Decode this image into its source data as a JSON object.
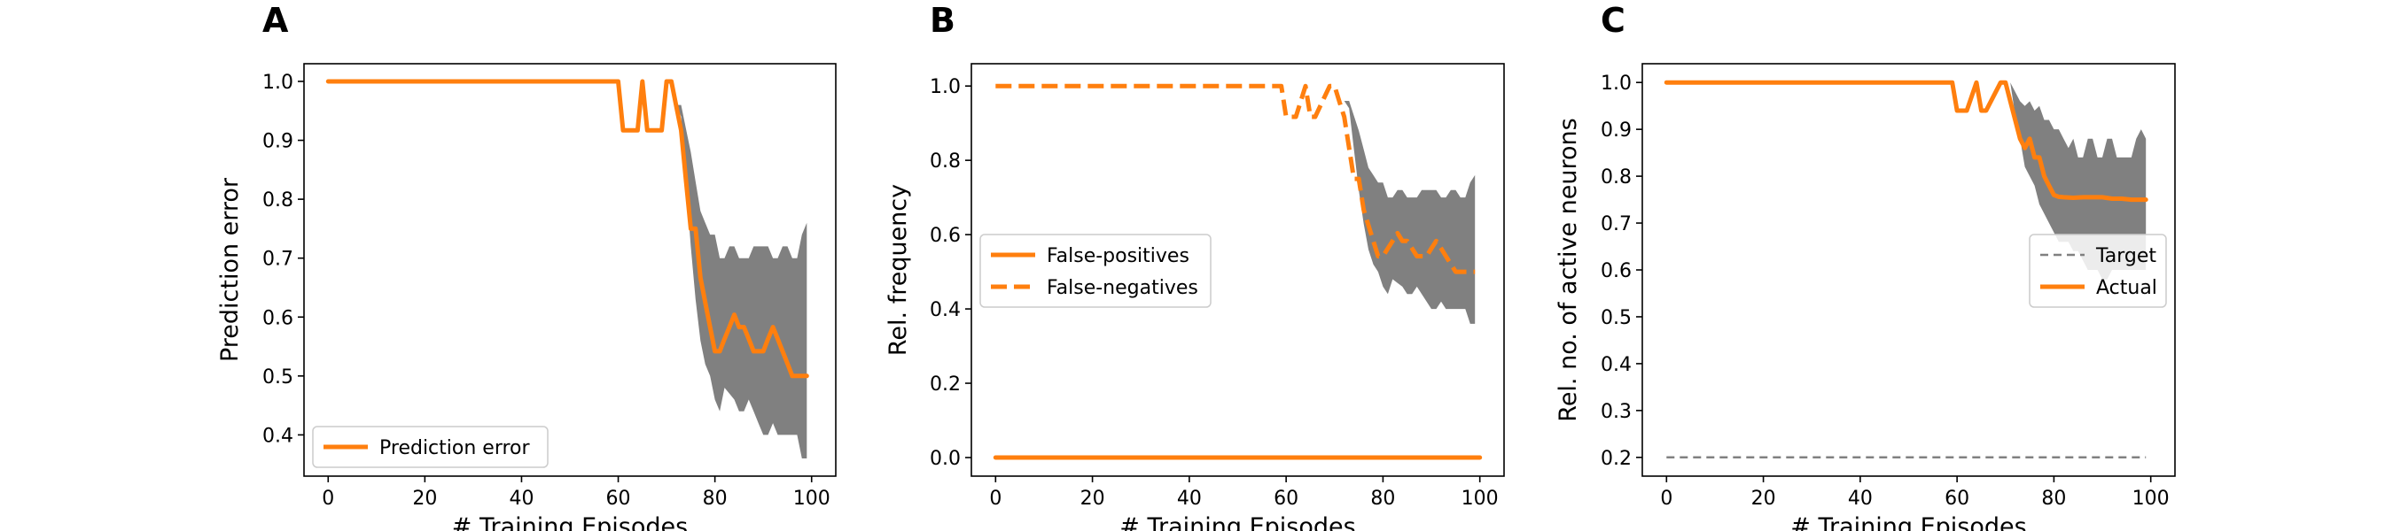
{
  "chart_data": [
    {
      "panel": "A",
      "type": "line",
      "xlabel": "# Training Episodes",
      "ylabel": "Prediction error",
      "xlim": [
        -5,
        105
      ],
      "ylim": [
        0.33,
        1.03
      ],
      "xticks": [
        0,
        20,
        40,
        60,
        80,
        100
      ],
      "yticks": [
        0.4,
        0.5,
        0.6,
        0.7,
        0.8,
        0.9,
        1.0
      ],
      "ytick_labels": [
        "0.4",
        "0.5",
        "0.6",
        "0.7",
        "0.8",
        "0.9",
        "1.0"
      ],
      "grid": false,
      "legend": {
        "placement": "lower-left",
        "entries": [
          {
            "label": "Prediction error",
            "style": "solid",
            "color": "#ff7f0e"
          }
        ]
      },
      "series": [
        {
          "name": "Prediction error",
          "color": "#ff7f0e",
          "style": "solid",
          "x": [
            0,
            60,
            61,
            64,
            65,
            66,
            69,
            70,
            71,
            72,
            73,
            74,
            75,
            76,
            77,
            78,
            79,
            80,
            81,
            82,
            83,
            84,
            85,
            86,
            87,
            88,
            89,
            90,
            91,
            92,
            93,
            94,
            95,
            96,
            97,
            98,
            99
          ],
          "y": [
            1.0,
            1.0,
            0.917,
            0.917,
            1.0,
            0.917,
            0.917,
            1.0,
            1.0,
            0.958,
            0.917,
            0.833,
            0.75,
            0.75,
            0.667,
            0.625,
            0.583,
            0.542,
            0.542,
            0.563,
            0.583,
            0.604,
            0.583,
            0.583,
            0.563,
            0.542,
            0.542,
            0.542,
            0.563,
            0.583,
            0.563,
            0.542,
            0.521,
            0.5,
            0.5,
            0.5,
            0.5
          ]
        }
      ],
      "band": {
        "color": "#808080",
        "x": [
          72,
          73,
          74,
          75,
          76,
          77,
          78,
          79,
          80,
          81,
          82,
          83,
          84,
          85,
          86,
          87,
          88,
          89,
          90,
          91,
          92,
          93,
          94,
          95,
          96,
          97,
          98,
          99
        ],
        "upper": [
          0.96,
          0.96,
          0.92,
          0.88,
          0.83,
          0.78,
          0.76,
          0.74,
          0.74,
          0.7,
          0.7,
          0.72,
          0.72,
          0.7,
          0.7,
          0.7,
          0.72,
          0.72,
          0.72,
          0.72,
          0.7,
          0.7,
          0.72,
          0.72,
          0.7,
          0.7,
          0.74,
          0.76
        ],
        "lower": [
          0.96,
          0.94,
          0.83,
          0.72,
          0.63,
          0.56,
          0.52,
          0.5,
          0.46,
          0.44,
          0.48,
          0.47,
          0.46,
          0.44,
          0.44,
          0.46,
          0.44,
          0.42,
          0.4,
          0.4,
          0.42,
          0.4,
          0.4,
          0.4,
          0.4,
          0.4,
          0.36,
          0.36
        ]
      }
    },
    {
      "panel": "B",
      "type": "line",
      "xlabel": "# Training Episodes",
      "ylabel": "Rel. frequency",
      "xlim": [
        -5,
        105
      ],
      "ylim": [
        -0.05,
        1.06
      ],
      "xticks": [
        0,
        20,
        40,
        60,
        80,
        100
      ],
      "yticks": [
        0.0,
        0.2,
        0.4,
        0.6,
        0.8,
        1.0
      ],
      "ytick_labels": [
        "0.0",
        "0.2",
        "0.4",
        "0.6",
        "0.8",
        "1.0"
      ],
      "grid": false,
      "legend": {
        "placement": "center-left",
        "entries": [
          {
            "label": "False-positives",
            "style": "solid",
            "color": "#ff7f0e"
          },
          {
            "label": "False-negatives",
            "style": "dashed",
            "color": "#ff7f0e"
          }
        ]
      },
      "series": [
        {
          "name": "False-positives",
          "color": "#ff7f0e",
          "style": "solid",
          "x": [
            0,
            100
          ],
          "y": [
            0.0,
            0.0
          ]
        },
        {
          "name": "False-negatives",
          "color": "#ff7f0e",
          "style": "dashed",
          "x": [
            0,
            59,
            60,
            62,
            64,
            65,
            66,
            69,
            70,
            71,
            72,
            73,
            74,
            75,
            76,
            77,
            78,
            79,
            80,
            81,
            82,
            83,
            84,
            85,
            86,
            87,
            88,
            89,
            90,
            91,
            92,
            93,
            94,
            95,
            96,
            97,
            98,
            99
          ],
          "y": [
            1.0,
            1.0,
            0.917,
            0.917,
            1.0,
            0.917,
            0.917,
            1.0,
            1.0,
            0.958,
            0.917,
            0.833,
            0.75,
            0.75,
            0.667,
            0.625,
            0.583,
            0.542,
            0.542,
            0.563,
            0.583,
            0.604,
            0.583,
            0.583,
            0.563,
            0.542,
            0.542,
            0.542,
            0.563,
            0.583,
            0.563,
            0.542,
            0.521,
            0.5,
            0.5,
            0.5,
            0.5,
            0.5
          ]
        }
      ],
      "band": {
        "color": "#808080",
        "x": [
          72,
          73,
          74,
          75,
          76,
          77,
          78,
          79,
          80,
          81,
          82,
          83,
          84,
          85,
          86,
          87,
          88,
          89,
          90,
          91,
          92,
          93,
          94,
          95,
          96,
          97,
          98,
          99
        ],
        "upper": [
          0.96,
          0.96,
          0.92,
          0.88,
          0.83,
          0.78,
          0.76,
          0.74,
          0.74,
          0.7,
          0.7,
          0.72,
          0.72,
          0.7,
          0.7,
          0.7,
          0.72,
          0.72,
          0.72,
          0.72,
          0.7,
          0.7,
          0.72,
          0.72,
          0.7,
          0.7,
          0.74,
          0.76
        ],
        "lower": [
          0.96,
          0.94,
          0.83,
          0.72,
          0.63,
          0.56,
          0.52,
          0.5,
          0.46,
          0.44,
          0.48,
          0.47,
          0.46,
          0.44,
          0.44,
          0.46,
          0.44,
          0.42,
          0.4,
          0.4,
          0.42,
          0.4,
          0.4,
          0.4,
          0.4,
          0.4,
          0.36,
          0.36
        ]
      }
    },
    {
      "panel": "C",
      "type": "line",
      "xlabel": "# Training Episodes",
      "ylabel": "Rel. no. of active neurons",
      "xlim": [
        -5,
        105
      ],
      "ylim": [
        0.16,
        1.04
      ],
      "xticks": [
        0,
        20,
        40,
        60,
        80,
        100
      ],
      "yticks": [
        0.2,
        0.3,
        0.4,
        0.5,
        0.6,
        0.7,
        0.8,
        0.9,
        1.0
      ],
      "ytick_labels": [
        "0.2",
        "0.3",
        "0.4",
        "0.5",
        "0.6",
        "0.7",
        "0.8",
        "0.9",
        "1.0"
      ],
      "grid": false,
      "legend": {
        "placement": "center-right",
        "entries": [
          {
            "label": "Target",
            "style": "dashed-thin",
            "color": "#808080"
          },
          {
            "label": "Actual",
            "style": "solid",
            "color": "#ff7f0e"
          }
        ]
      },
      "series": [
        {
          "name": "Target",
          "color": "#808080",
          "style": "dashed-thin",
          "x": [
            0,
            99
          ],
          "y": [
            0.2,
            0.2
          ]
        },
        {
          "name": "Actual",
          "color": "#ff7f0e",
          "style": "solid",
          "x": [
            0,
            59,
            60,
            62,
            64,
            65,
            66,
            69,
            70,
            71,
            72,
            73,
            74,
            75,
            76,
            77,
            78,
            79,
            80,
            81,
            82,
            84,
            86,
            88,
            90,
            92,
            94,
            96,
            98,
            99
          ],
          "y": [
            1.0,
            1.0,
            0.94,
            0.94,
            1.0,
            0.94,
            0.94,
            1.0,
            1.0,
            0.96,
            0.92,
            0.88,
            0.86,
            0.88,
            0.84,
            0.84,
            0.8,
            0.78,
            0.76,
            0.756,
            0.755,
            0.754,
            0.755,
            0.755,
            0.755,
            0.752,
            0.752,
            0.75,
            0.75,
            0.75
          ]
        }
      ],
      "band": {
        "color": "#808080",
        "x": [
          71,
          72,
          73,
          74,
          75,
          76,
          77,
          78,
          79,
          80,
          81,
          82,
          83,
          84,
          85,
          86,
          87,
          88,
          89,
          90,
          91,
          92,
          93,
          94,
          95,
          96,
          97,
          98,
          99
        ],
        "upper": [
          1.0,
          0.98,
          0.96,
          0.95,
          0.96,
          0.94,
          0.95,
          0.92,
          0.92,
          0.9,
          0.9,
          0.88,
          0.86,
          0.88,
          0.84,
          0.84,
          0.88,
          0.88,
          0.84,
          0.84,
          0.88,
          0.88,
          0.84,
          0.84,
          0.84,
          0.84,
          0.88,
          0.9,
          0.88
        ],
        "lower": [
          1.0,
          0.93,
          0.88,
          0.82,
          0.8,
          0.78,
          0.74,
          0.72,
          0.7,
          0.68,
          0.66,
          0.66,
          0.66,
          0.64,
          0.64,
          0.62,
          0.6,
          0.6,
          0.6,
          0.58,
          0.58,
          0.6,
          0.6,
          0.6,
          0.6,
          0.6,
          0.6,
          0.6,
          0.6
        ]
      }
    }
  ]
}
